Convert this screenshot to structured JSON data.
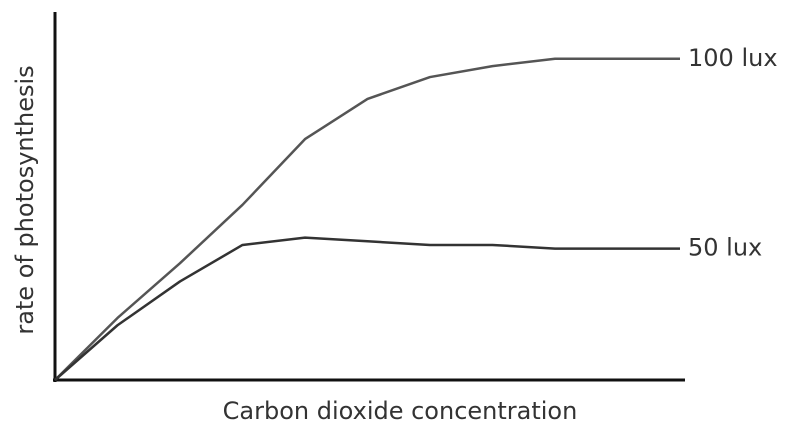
{
  "chart_data": {
    "type": "line",
    "x_label": "Carbon dioxide concentration",
    "y_label": "rate of photosynthesis",
    "x": [
      0,
      10,
      20,
      30,
      40,
      50,
      60,
      70,
      80,
      90,
      100
    ],
    "series": [
      {
        "name": "100 lux",
        "color": "#555555",
        "values": [
          0,
          17,
          32,
          48,
          66,
          77,
          83,
          86,
          88,
          88,
          88
        ]
      },
      {
        "name": "50 lux",
        "color": "#333333",
        "values": [
          0,
          15,
          27,
          37,
          39,
          38,
          37,
          37,
          36,
          36,
          36
        ]
      }
    ],
    "xlim": [
      0,
      100
    ],
    "ylim": [
      0,
      100
    ]
  }
}
